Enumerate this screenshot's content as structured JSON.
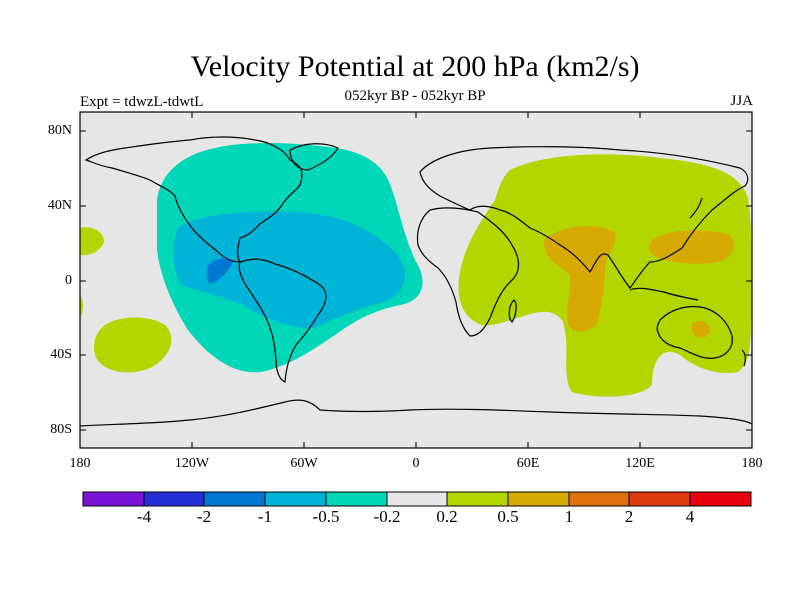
{
  "map": {
    "title": "Velocity Potential at 200 hPa (km2/s)",
    "subtitle": "052kyr BP - 052kyr BP",
    "left_label": "Expt = tdwzL-tdwtL",
    "right_label": "JJA",
    "lat_labels": [
      "80N",
      "40N",
      "0",
      "40S",
      "80S"
    ],
    "lon_labels": [
      "180",
      "120W",
      "60W",
      "0",
      "60E",
      "120E",
      "180"
    ]
  },
  "colorbar": {
    "labels": [
      "-4",
      "-2",
      "-1",
      "-0.5",
      "-0.2",
      "0.2",
      "0.5",
      "1",
      "2",
      "4"
    ],
    "colors": [
      "#7b13d6",
      "#2430d6",
      "#0078d4",
      "#00b4d8",
      "#00d6b8",
      "#e6e6e6",
      "#b4d600",
      "#d6aa00",
      "#e07010",
      "#e03a10",
      "#e8000e"
    ]
  },
  "colors": {
    "ocean": "#e6e6e6",
    "neg_02_05": "#00d6b8",
    "neg_05_1": "#00b4d8",
    "neg_1_2": "#0078d4",
    "pos_02_05": "#b4d600",
    "pos_05_1": "#d6aa00",
    "pos_1_2": "#e07010"
  }
}
